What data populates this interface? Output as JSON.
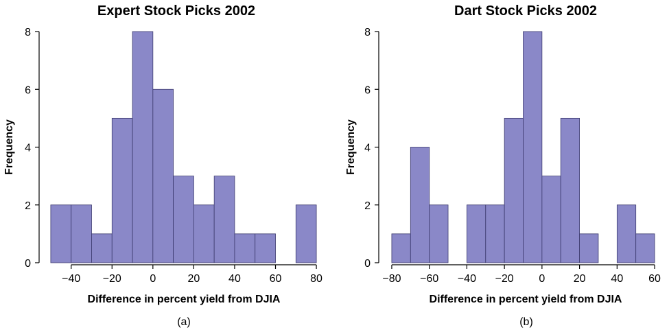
{
  "colors": {
    "bar_fill": "#8A88C8",
    "bar_stroke": "#3c3a6e"
  },
  "chart_data": [
    {
      "type": "bar",
      "title": "Expert Stock Picks 2002",
      "xlabel": "Difference in percent yield from DJIA",
      "ylabel": "Frequency",
      "panel_label": "(a)",
      "xlim": [
        -53,
        83
      ],
      "ylim": [
        0,
        8
      ],
      "xticks": [
        -40,
        -20,
        0,
        20,
        40,
        60,
        80
      ],
      "xtick_labels": [
        "−40",
        "−20",
        "0",
        "20",
        "40",
        "60",
        "80"
      ],
      "yticks": [
        0,
        2,
        4,
        6,
        8
      ],
      "ytick_labels": [
        "0",
        "2",
        "4",
        "6",
        "8"
      ],
      "bins": [
        {
          "x0": -50,
          "x1": -40,
          "value": 2
        },
        {
          "x0": -40,
          "x1": -30,
          "value": 2
        },
        {
          "x0": -30,
          "x1": -20,
          "value": 1
        },
        {
          "x0": -20,
          "x1": -10,
          "value": 5
        },
        {
          "x0": -10,
          "x1": 0,
          "value": 8
        },
        {
          "x0": 0,
          "x1": 10,
          "value": 6
        },
        {
          "x0": 10,
          "x1": 20,
          "value": 3
        },
        {
          "x0": 20,
          "x1": 30,
          "value": 2
        },
        {
          "x0": 30,
          "x1": 40,
          "value": 3
        },
        {
          "x0": 40,
          "x1": 50,
          "value": 1
        },
        {
          "x0": 50,
          "x1": 60,
          "value": 1
        },
        {
          "x0": 70,
          "x1": 80,
          "value": 2
        }
      ]
    },
    {
      "type": "bar",
      "title": "Dart Stock Picks 2002",
      "xlabel": "Difference in percent yield from DJIA",
      "ylabel": "Frequency",
      "panel_label": "(b)",
      "xlim": [
        -84,
        64
      ],
      "ylim": [
        0,
        8
      ],
      "xticks": [
        -80,
        -60,
        -40,
        -20,
        0,
        20,
        40,
        60
      ],
      "xtick_labels": [
        "−80",
        "−60",
        "−40",
        "−20",
        "0",
        "20",
        "40",
        "60"
      ],
      "yticks": [
        0,
        2,
        4,
        6,
        8
      ],
      "ytick_labels": [
        "0",
        "2",
        "4",
        "6",
        "8"
      ],
      "bins": [
        {
          "x0": -80,
          "x1": -70,
          "value": 1
        },
        {
          "x0": -70,
          "x1": -60,
          "value": 4
        },
        {
          "x0": -60,
          "x1": -50,
          "value": 2
        },
        {
          "x0": -40,
          "x1": -30,
          "value": 2
        },
        {
          "x0": -30,
          "x1": -20,
          "value": 2
        },
        {
          "x0": -20,
          "x1": -10,
          "value": 5
        },
        {
          "x0": -10,
          "x1": 0,
          "value": 8
        },
        {
          "x0": 0,
          "x1": 10,
          "value": 3
        },
        {
          "x0": 10,
          "x1": 20,
          "value": 5
        },
        {
          "x0": 20,
          "x1": 30,
          "value": 1
        },
        {
          "x0": 40,
          "x1": 50,
          "value": 2
        },
        {
          "x0": 50,
          "x1": 60,
          "value": 1
        }
      ]
    }
  ]
}
